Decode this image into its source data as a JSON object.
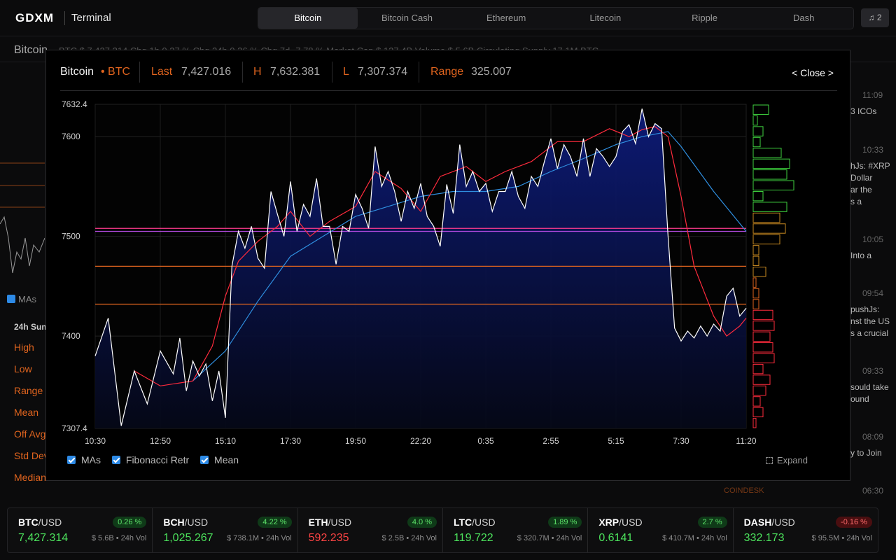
{
  "header": {
    "logo": "GDXM",
    "app_name": "Terminal",
    "tabs": [
      "Bitcoin",
      "Bitcoin Cash",
      "Ethereum",
      "Litecoin",
      "Ripple",
      "Dash"
    ],
    "active_tab": "Bitcoin",
    "notification_count": "2"
  },
  "background": {
    "coin": "Bitcoin",
    "stats_line": "BTC  $ 7,427.314   Chg 1h  0.27 %   Chg 24h  0.26 %   Chg 7d  -7.78 %   Market Cap  $ 127.4B   Volume  $ 5.6B   Circulating Supply  17.1M BTC",
    "ma_label": "MAs",
    "summary_title": "24h Sum",
    "stat_labels": [
      "High",
      "Low",
      "Range",
      "Mean",
      "Off Avg",
      "Std Dev",
      "Median"
    ],
    "news_times": [
      "11:09",
      "10:33",
      "10:05",
      "09:54",
      "09:33",
      "08:09",
      "06:30"
    ],
    "news_snippets": [
      "3 ICOs",
      "hJs: #XRP\nDollar\nar the\ns a",
      "Into a",
      "pushJs:\nnst the US\ns a crucial",
      "sould take\nound",
      "y to Join",
      ""
    ],
    "news_source": "COINDESK"
  },
  "modal": {
    "coin": "Bitcoin",
    "symbol": "• BTC",
    "last_label": "Last",
    "last_value": "7,427.016",
    "high_label": "H",
    "high_value": "7,632.381",
    "low_label": "L",
    "low_value": "7,307.374",
    "range_label": "Range",
    "range_value": "325.007",
    "close_label": "< Close >",
    "legend": [
      "MAs",
      "Fibonacci Retr",
      "Mean"
    ],
    "expand_label": "Expand"
  },
  "chart_data": {
    "type": "line",
    "title": "",
    "xlabel": "",
    "ylabel": "",
    "ylim": [
      7307.4,
      7632.4
    ],
    "y_ticks": [
      "7632.4",
      "7600",
      "7500",
      "7400",
      "7307.4"
    ],
    "x_ticks": [
      "10:30",
      "12:50",
      "15:10",
      "17:30",
      "19:50",
      "22:20",
      "0:35",
      "2:55",
      "5:15",
      "7:30",
      "11:20"
    ],
    "series": [
      {
        "color": "#ffffff",
        "x": [
          0,
          2,
          4,
          6,
          8,
          10,
          12,
          13,
          14,
          15,
          16,
          17,
          18,
          19,
          20,
          21,
          22,
          23,
          24,
          25,
          26,
          27,
          28,
          29,
          30,
          31,
          32,
          33,
          34,
          35,
          36,
          37,
          38,
          39,
          40,
          41,
          42,
          43,
          44,
          45,
          46,
          47,
          48,
          49,
          50,
          51,
          52,
          53,
          54,
          55,
          56,
          57,
          58,
          59,
          60,
          61,
          62,
          63,
          64,
          65,
          66,
          67,
          68,
          69,
          70,
          71,
          72,
          73,
          74,
          75,
          76,
          77,
          78,
          79,
          80,
          81,
          82,
          83,
          84,
          85,
          86,
          87,
          88,
          89,
          90,
          91,
          92,
          93,
          94,
          95,
          96,
          97,
          98,
          99,
          100
        ],
        "values": [
          7380,
          7418,
          7310,
          7365,
          7332,
          7385,
          7362,
          7398,
          7345,
          7375,
          7360,
          7372,
          7335,
          7365,
          7318,
          7470,
          7505,
          7488,
          7510,
          7478,
          7468,
          7545,
          7522,
          7500,
          7555,
          7505,
          7532,
          7520,
          7558,
          7510,
          7510,
          7472,
          7510,
          7505,
          7542,
          7528,
          7508,
          7590,
          7550,
          7565,
          7545,
          7515,
          7545,
          7528,
          7553,
          7520,
          7510,
          7490,
          7552,
          7523,
          7592,
          7550,
          7565,
          7545,
          7553,
          7525,
          7545,
          7545,
          7565,
          7540,
          7528,
          7560,
          7550,
          7575,
          7598,
          7568,
          7592,
          7580,
          7560,
          7598,
          7560,
          7588,
          7580,
          7570,
          7580,
          7605,
          7612,
          7593,
          7628,
          7600,
          7613,
          7608,
          7500,
          7408,
          7395,
          7405,
          7398,
          7410,
          7400,
          7412,
          7405,
          7440,
          7448,
          7420,
          7428
        ]
      },
      {
        "color": "#ff2b3d",
        "x": [
          6,
          10,
          15,
          18,
          20,
          22,
          25,
          28,
          30,
          33,
          36,
          40,
          43,
          47,
          50,
          53,
          57,
          60,
          63,
          67,
          71,
          75,
          79,
          82,
          84,
          86,
          88,
          90,
          92,
          95,
          97,
          99,
          100
        ],
        "values": [
          7365,
          7350,
          7355,
          7390,
          7440,
          7475,
          7495,
          7510,
          7525,
          7500,
          7515,
          7530,
          7565,
          7548,
          7525,
          7560,
          7570,
          7555,
          7565,
          7575,
          7595,
          7595,
          7608,
          7600,
          7607,
          7610,
          7600,
          7540,
          7470,
          7420,
          7400,
          7410,
          7418
        ]
      },
      {
        "color": "#2f8fe0",
        "x": [
          15,
          20,
          25,
          30,
          35,
          40,
          45,
          50,
          55,
          60,
          65,
          70,
          75,
          80,
          84,
          88,
          90,
          95,
          100
        ],
        "values": [
          7355,
          7385,
          7435,
          7480,
          7500,
          7520,
          7530,
          7540,
          7545,
          7545,
          7550,
          7565,
          7578,
          7592,
          7600,
          7605,
          7590,
          7545,
          7505
        ]
      }
    ],
    "horizontal_levels": [
      {
        "value": 7508,
        "color": "#ff3b8e"
      },
      {
        "value": 7505,
        "color": "#b24adf"
      },
      {
        "value": 7470,
        "color": "#e0641e"
      },
      {
        "value": 7432,
        "color": "#e0641e"
      }
    ],
    "volume_profile_note": "buy/sell bars along right axis",
    "volume_profile": [
      22,
      6,
      14,
      10,
      40,
      52,
      48,
      58,
      14,
      48,
      38,
      46,
      38,
      8,
      8,
      18,
      4,
      8,
      8,
      28,
      30,
      24,
      28,
      30,
      14,
      24,
      18,
      10,
      14,
      4
    ],
    "grid": true
  },
  "ticker": [
    {
      "base": "BTC",
      "quote": "/USD",
      "change": "0.26 %",
      "dir": "up",
      "price": "7,427.314",
      "vol": "$ 5.6B • 24h Vol"
    },
    {
      "base": "BCH",
      "quote": "/USD",
      "change": "4.22 %",
      "dir": "up",
      "price": "1,025.267",
      "vol": "$ 738.1M • 24h Vol"
    },
    {
      "base": "ETH",
      "quote": "/USD",
      "change": "4.0 %",
      "dir": "up",
      "price": "592.235",
      "price_dir": "down",
      "vol": "$ 2.5B • 24h Vol"
    },
    {
      "base": "LTC",
      "quote": "/USD",
      "change": "1.89 %",
      "dir": "up",
      "price": "119.722",
      "vol": "$ 320.7M • 24h Vol"
    },
    {
      "base": "XRP",
      "quote": "/USD",
      "change": "2.7 %",
      "dir": "up",
      "price": "0.6141",
      "vol": "$ 410.7M • 24h Vol"
    },
    {
      "base": "DASH",
      "quote": "/USD",
      "change": "-0.16 %",
      "dir": "down",
      "price": "332.173",
      "vol": "$ 95.5M • 24h Vol"
    }
  ]
}
